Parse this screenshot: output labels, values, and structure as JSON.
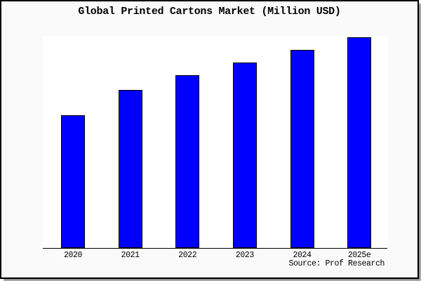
{
  "chart_data": {
    "type": "bar",
    "title": "Global Printed Cartons Market (Million USD)",
    "categories": [
      "2020",
      "2021",
      "2022",
      "2023",
      "2024",
      "2025e"
    ],
    "values": [
      63,
      75,
      82,
      88,
      94,
      100
    ],
    "xlabel": "",
    "ylabel": "",
    "ylim": [
      0,
      100.7
    ],
    "grid": false,
    "legend": false,
    "y_axis_shown": false,
    "bar_color": "#0000ff",
    "bar_border_color": "#000000",
    "plot_background": "#ffffff",
    "canvas_background": "#fafafa",
    "frame_border_color": "#000000",
    "source": "Source: Prof Research"
  }
}
